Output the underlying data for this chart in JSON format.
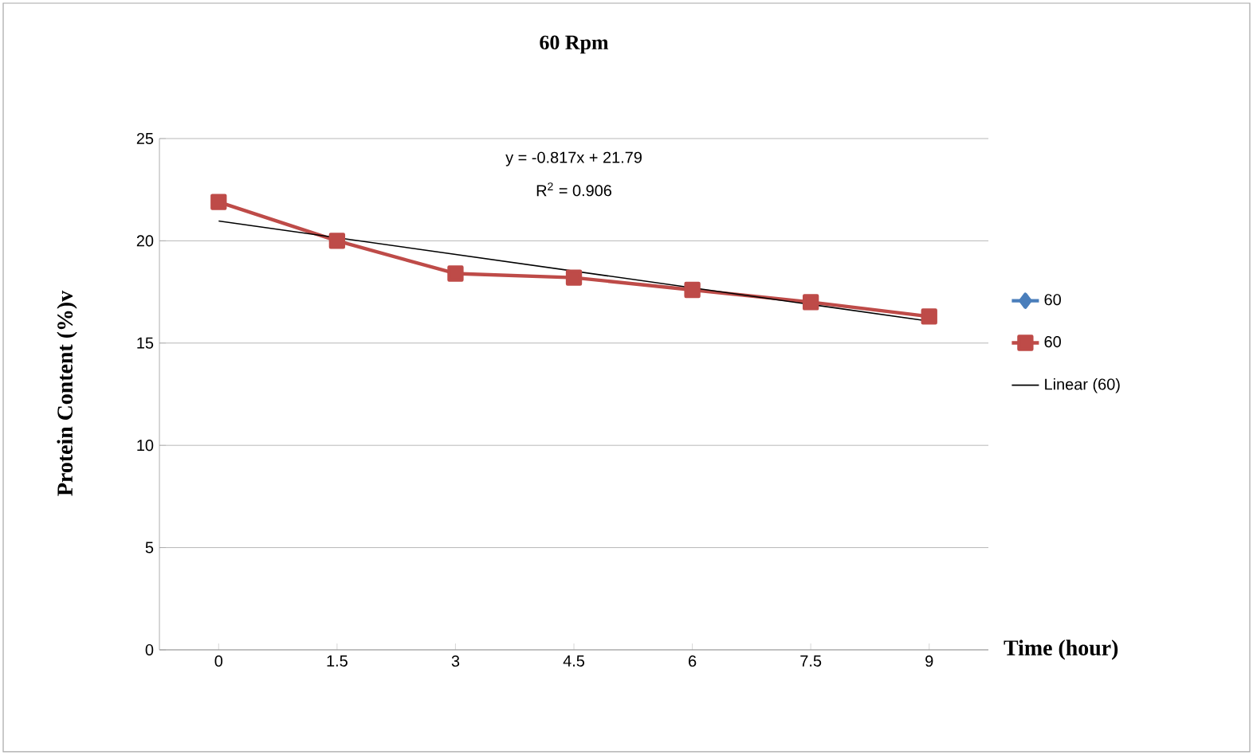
{
  "chart_data": {
    "type": "line",
    "title": "60 Rpm",
    "xlabel": "Time (hour)",
    "ylabel": "Protein Content (%)v",
    "x": [
      0,
      1.5,
      3,
      4.5,
      6,
      7.5,
      9
    ],
    "series": [
      {
        "name": "60",
        "color": "#4a7ebb",
        "marker": "diamond",
        "values": [
          null,
          null,
          null,
          null,
          null,
          null,
          null
        ]
      },
      {
        "name": "60",
        "color": "#be4b48",
        "marker": "square",
        "values": [
          21.9,
          20.0,
          18.4,
          18.2,
          17.6,
          17.0,
          16.3
        ]
      },
      {
        "name": "Linear (60)",
        "color": "#000000",
        "marker": "none",
        "type": "line",
        "x": [
          0,
          9
        ],
        "values": [
          20.97,
          16.07
        ]
      }
    ],
    "xlim": [
      -0.75,
      9.75
    ],
    "xticks": [
      0,
      1.5,
      3,
      4.5,
      6,
      7.5,
      9
    ],
    "ylim": [
      0,
      25
    ],
    "yticks": [
      0,
      5,
      10,
      15,
      20,
      25
    ],
    "grid": "y",
    "legend": "right",
    "annotations": [
      "y = -0.817x + 21.79",
      "R$^{2}$ = 0.906"
    ]
  }
}
